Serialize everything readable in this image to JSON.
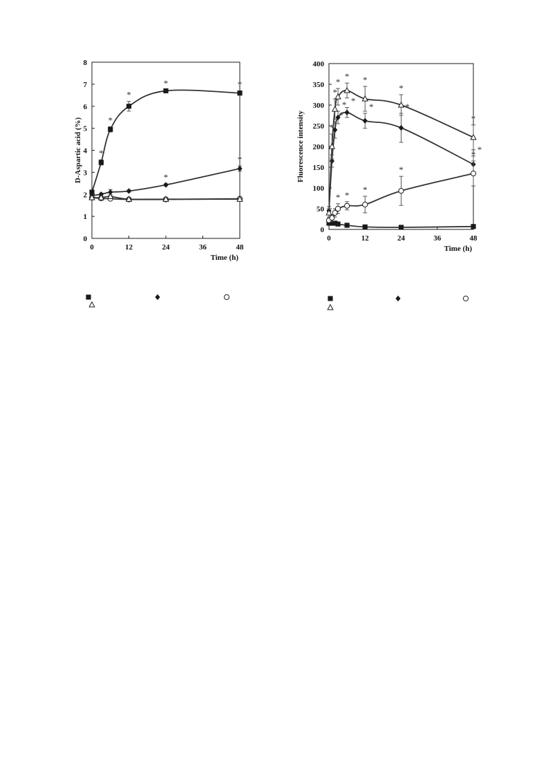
{
  "chart_data": [
    {
      "type": "line",
      "xlabel": "Time (h)",
      "ylabel": "D-Aspartic acid (%)",
      "xlim": [
        0,
        48
      ],
      "ylim": [
        0,
        8
      ],
      "x_ticks": [
        "0",
        "12",
        "24",
        "36",
        "48"
      ],
      "y_ticks": [
        "0",
        "1",
        "2",
        "3",
        "4",
        "5",
        "6",
        "7",
        "8"
      ],
      "x": [
        0,
        3,
        6,
        12,
        24,
        48
      ],
      "series": [
        {
          "marker": "filled-square",
          "values": [
            2.1,
            3.45,
            4.95,
            6.0,
            6.7,
            6.6
          ],
          "errors": [
            0.08,
            0.12,
            0.12,
            0.22,
            0.05,
            0.1
          ],
          "significant": [
            false,
            true,
            true,
            true,
            true,
            true
          ]
        },
        {
          "marker": "filled-diamond",
          "values": [
            1.95,
            2.0,
            2.1,
            2.15,
            2.43,
            3.17
          ],
          "errors": [
            0.05,
            0.06,
            0.12,
            0.05,
            0.05,
            0.12
          ],
          "significant": [
            false,
            false,
            false,
            false,
            true,
            true
          ]
        },
        {
          "marker": "open-circle",
          "values": [
            1.85,
            1.82,
            1.8,
            1.77,
            1.77,
            1.8
          ],
          "errors": [
            0.04,
            0.04,
            0.04,
            0.04,
            0.04,
            0.04
          ],
          "significant": [
            false,
            false,
            false,
            false,
            false,
            false
          ]
        },
        {
          "marker": "open-triangle",
          "values": [
            1.85,
            1.85,
            1.9,
            1.78,
            1.78,
            1.78
          ],
          "errors": [
            0.04,
            0.04,
            0.05,
            0.04,
            0.04,
            0.04
          ],
          "significant": [
            false,
            false,
            false,
            false,
            false,
            false
          ]
        }
      ],
      "annotation_symbol": "*"
    },
    {
      "type": "line",
      "xlabel": "Time (h)",
      "ylabel": "Fluorescence intensity",
      "xlim": [
        0,
        48
      ],
      "ylim": [
        0,
        400
      ],
      "x_ticks": [
        "0",
        "12",
        "24",
        "36",
        "48"
      ],
      "y_ticks": [
        "0",
        "50",
        "100",
        "150",
        "200",
        "250",
        "300",
        "350",
        "400"
      ],
      "x": [
        0,
        1,
        2,
        3,
        6,
        12,
        24,
        48
      ],
      "series": [
        {
          "marker": "filled-square",
          "values": [
            15,
            15,
            15,
            13,
            10,
            6,
            5,
            7
          ],
          "errors": [
            3,
            3,
            3,
            3,
            2,
            2,
            2,
            2
          ],
          "significant": [
            false,
            false,
            false,
            false,
            false,
            false,
            false,
            false
          ]
        },
        {
          "marker": "filled-diamond",
          "values": [
            45,
            165,
            240,
            270,
            282,
            262,
            245,
            157
          ],
          "errors": [
            10,
            15,
            20,
            15,
            12,
            18,
            35,
            20
          ],
          "significant": [
            false,
            false,
            true,
            true,
            true,
            true,
            true,
            true
          ]
        },
        {
          "marker": "open-circle",
          "values": [
            22,
            28,
            40,
            50,
            57,
            60,
            93,
            135
          ],
          "errors": [
            5,
            8,
            10,
            12,
            10,
            20,
            35,
            30
          ],
          "significant": [
            false,
            false,
            false,
            true,
            true,
            true,
            true,
            true
          ]
        },
        {
          "marker": "open-triangle",
          "values": [
            40,
            200,
            290,
            320,
            335,
            315,
            300,
            222
          ],
          "errors": [
            10,
            30,
            25,
            20,
            18,
            30,
            25,
            30
          ],
          "significant": [
            false,
            true,
            true,
            true,
            true,
            true,
            true,
            true
          ]
        }
      ],
      "annotation_symbol": "*"
    }
  ],
  "legends": [
    {
      "items": [
        {
          "marker": "filled-square"
        },
        {
          "marker": "filled-diamond"
        },
        {
          "marker": "open-circle"
        },
        {
          "marker": "open-triangle"
        }
      ]
    },
    {
      "items": [
        {
          "marker": "filled-square"
        },
        {
          "marker": "filled-diamond"
        },
        {
          "marker": "open-circle"
        },
        {
          "marker": "open-triangle"
        }
      ]
    }
  ],
  "colors": {
    "ink": "#1a1a1a",
    "line": "#333333",
    "error": "#555555"
  }
}
